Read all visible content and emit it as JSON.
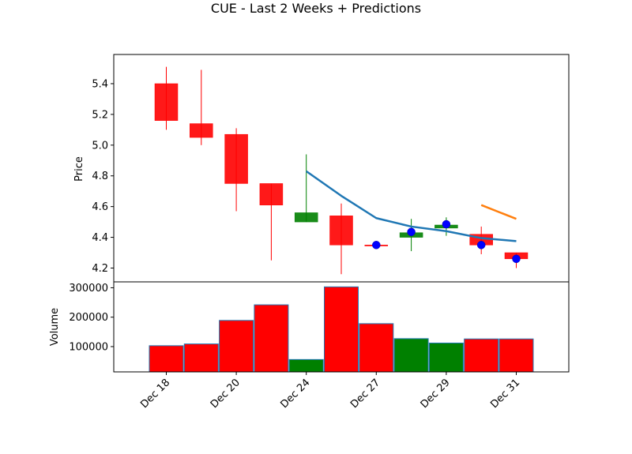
{
  "chart_data": {
    "type": "candlestick",
    "title": "CUE - Last 2 Weeks + Predictions",
    "price_panel": {
      "ylabel": "Price",
      "ylim": [
        4.11,
        5.59
      ],
      "yticks": [
        "4.2",
        "4.4",
        "4.6",
        "4.8",
        "5.0",
        "5.2",
        "5.4"
      ],
      "candles": [
        {
          "open": 5.4,
          "high": 5.51,
          "low": 5.1,
          "close": 5.16,
          "direction": "down"
        },
        {
          "open": 5.14,
          "high": 5.49,
          "low": 5.0,
          "close": 5.05,
          "direction": "down"
        },
        {
          "open": 5.07,
          "high": 5.11,
          "low": 4.57,
          "close": 4.75,
          "direction": "down"
        },
        {
          "open": 4.75,
          "high": 4.75,
          "low": 4.25,
          "close": 4.61,
          "direction": "down"
        },
        {
          "open": 4.5,
          "high": 4.94,
          "low": 4.5,
          "close": 4.56,
          "direction": "up"
        },
        {
          "open": 4.54,
          "high": 4.62,
          "low": 4.16,
          "close": 4.35,
          "direction": "down"
        },
        {
          "open": 4.35,
          "high": 4.36,
          "low": 4.33,
          "close": 4.35,
          "direction": "down"
        },
        {
          "open": 4.4,
          "high": 4.52,
          "low": 4.31,
          "close": 4.43,
          "direction": "up"
        },
        {
          "open": 4.46,
          "high": 4.53,
          "low": 4.41,
          "close": 4.48,
          "direction": "up"
        },
        {
          "open": 4.42,
          "high": 4.47,
          "low": 4.29,
          "close": 4.35,
          "direction": "down"
        },
        {
          "open": 4.3,
          "high": 4.3,
          "low": 4.2,
          "close": 4.26,
          "direction": "down"
        }
      ],
      "actual_close_markers": [
        {
          "index": 6,
          "value": 4.35
        },
        {
          "index": 7,
          "value": 4.435
        },
        {
          "index": 8,
          "value": 4.485
        },
        {
          "index": 9,
          "value": 4.35
        },
        {
          "index": 10,
          "value": 4.26
        }
      ],
      "trend_line": {
        "color": "#1f77b4",
        "points": [
          {
            "index": 4,
            "value": 4.83
          },
          {
            "index": 5,
            "value": 4.67
          },
          {
            "index": 6,
            "value": 4.525
          },
          {
            "index": 7,
            "value": 4.47
          },
          {
            "index": 8,
            "value": 4.44
          },
          {
            "index": 9,
            "value": 4.395
          },
          {
            "index": 10,
            "value": 4.375
          }
        ]
      },
      "prediction_line": {
        "color": "#ff7f0e",
        "points": [
          {
            "index": 9,
            "value": 4.61
          },
          {
            "index": 10,
            "value": 4.52
          }
        ]
      }
    },
    "volume_panel": {
      "ylabel": "Volume",
      "ylim": [
        14000,
        320000
      ],
      "yticks": [
        "100000",
        "200000",
        "300000"
      ],
      "values": [
        103000,
        109000,
        189000,
        242000,
        56000,
        303000,
        178000,
        127000,
        112000,
        126000,
        126000
      ]
    },
    "x_tick_labels": [
      {
        "index": 0,
        "label": "Dec 18"
      },
      {
        "index": 2,
        "label": "Dec 20"
      },
      {
        "index": 4,
        "label": "Dec 24"
      },
      {
        "index": 6,
        "label": "Dec 27"
      },
      {
        "index": 8,
        "label": "Dec 29"
      },
      {
        "index": 10,
        "label": "Dec 31"
      }
    ],
    "colors": {
      "up": "#008000",
      "down": "#ff0000",
      "marker": "#0000ff",
      "volume_edge": "#1f77b4"
    },
    "grid": false
  }
}
